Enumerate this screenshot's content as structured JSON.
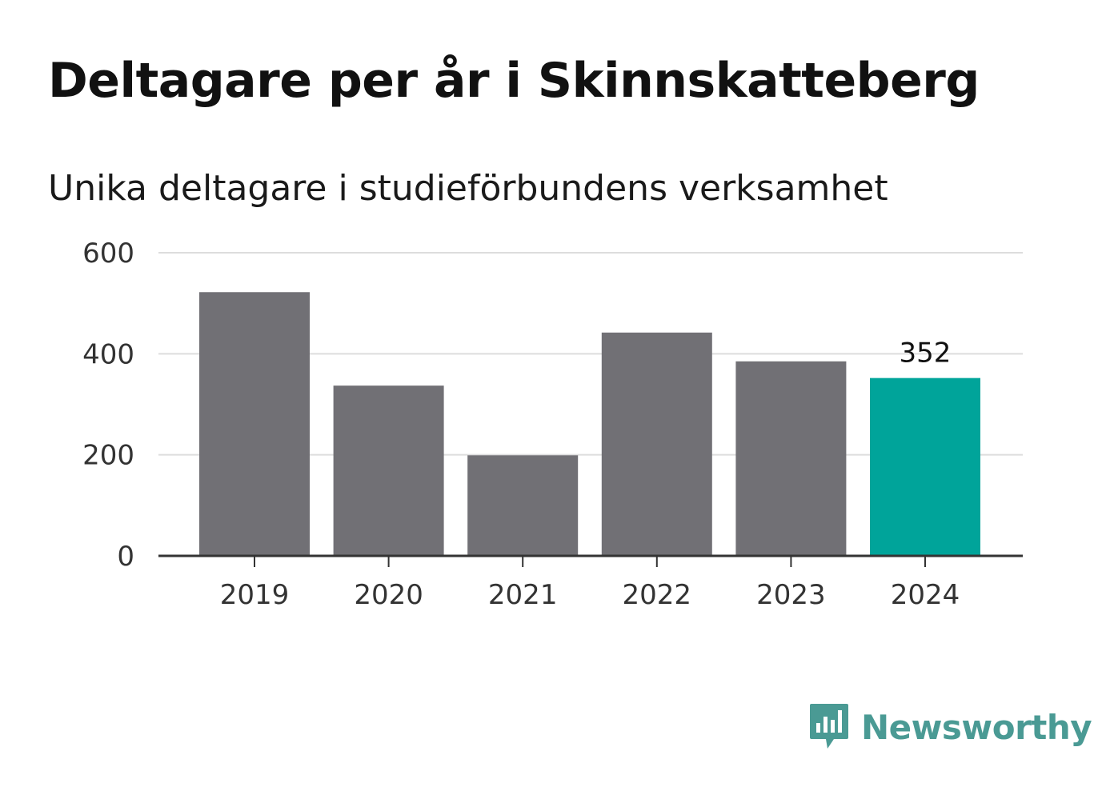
{
  "chart_data": {
    "type": "bar",
    "title": "Deltagare per år i Skinnskatteberg",
    "subtitle": "Unika deltagare i studieförbundens verksamhet",
    "categories": [
      "2019",
      "2020",
      "2021",
      "2022",
      "2023",
      "2024"
    ],
    "values": [
      522,
      337,
      199,
      442,
      385,
      352
    ],
    "highlight_index": 5,
    "highlight_label": "352",
    "ylim": [
      0,
      600
    ],
    "yticks": [
      0,
      200,
      400,
      600
    ],
    "grid": true,
    "legend": "none",
    "colors": {
      "bar": "#717075",
      "highlight": "#00a49a",
      "grid": "#dddddd",
      "axis": "#333333"
    }
  },
  "brand": {
    "name": "Newsworthy",
    "color": "#4a9a94",
    "icon": "bar-chart-speech-bubble-icon"
  }
}
